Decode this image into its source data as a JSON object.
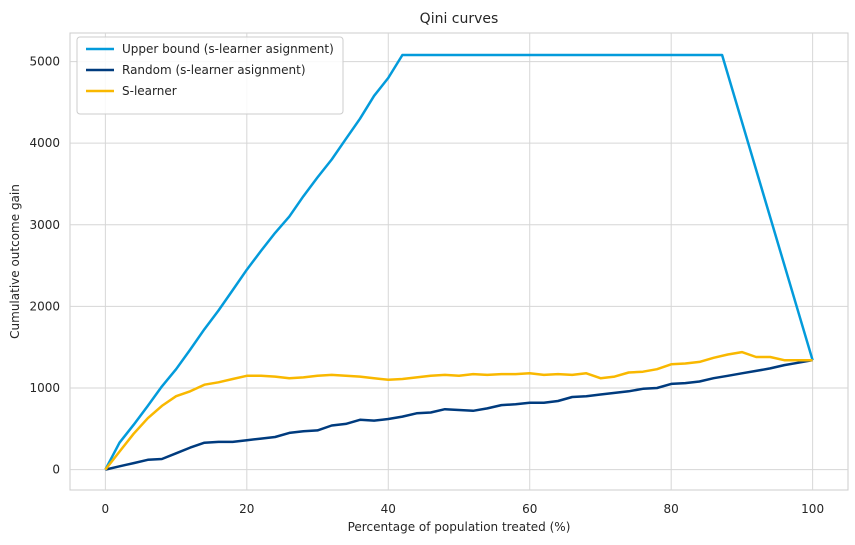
{
  "chart_data": {
    "type": "line",
    "title": "Qini curves",
    "xlabel": "Percentage of population treated (%)",
    "ylabel": "Cumulative outcome gain",
    "xlim": [
      -5,
      105
    ],
    "ylim": [
      -250,
      5350
    ],
    "xticks": [
      0,
      20,
      40,
      60,
      80,
      100
    ],
    "yticks": [
      0,
      1000,
      2000,
      3000,
      4000,
      5000
    ],
    "grid": true,
    "legend_position": "top-left",
    "series": [
      {
        "name": "Upper bound (s-learner asignment)",
        "color": "#039BDB",
        "x": [
          0,
          2,
          4,
          6,
          8,
          10,
          12,
          14,
          16,
          18,
          20,
          22,
          24,
          26,
          28,
          30,
          32,
          34,
          36,
          38,
          40,
          42,
          87.2,
          100
        ],
        "y": [
          0,
          330,
          550,
          780,
          1020,
          1230,
          1470,
          1720,
          1950,
          2200,
          2450,
          2680,
          2900,
          3100,
          3350,
          3580,
          3800,
          4050,
          4300,
          4580,
          4800,
          5080,
          5080,
          1340
        ]
      },
      {
        "name": "Random (s-learner asignment)",
        "color": "#003B7E",
        "x": [
          0,
          2,
          4,
          6,
          8,
          10,
          12,
          14,
          16,
          18,
          20,
          22,
          24,
          26,
          28,
          30,
          32,
          34,
          36,
          38,
          40,
          42,
          44,
          46,
          48,
          50,
          52,
          54,
          56,
          58,
          60,
          62,
          64,
          66,
          68,
          70,
          72,
          74,
          76,
          78,
          80,
          82,
          84,
          86,
          88,
          90,
          92,
          94,
          96,
          98,
          100
        ],
        "y": [
          0,
          40,
          80,
          120,
          130,
          200,
          270,
          330,
          340,
          340,
          360,
          380,
          400,
          450,
          470,
          480,
          540,
          560,
          610,
          600,
          620,
          650,
          690,
          700,
          740,
          730,
          720,
          750,
          790,
          800,
          820,
          820,
          840,
          890,
          900,
          920,
          940,
          960,
          990,
          1000,
          1050,
          1060,
          1080,
          1120,
          1150,
          1180,
          1210,
          1240,
          1280,
          1310,
          1340
        ]
      },
      {
        "name": "S-learner",
        "color": "#F9B800",
        "x": [
          0,
          2,
          4,
          6,
          8,
          10,
          12,
          14,
          16,
          18,
          20,
          22,
          24,
          26,
          28,
          30,
          32,
          34,
          36,
          38,
          40,
          42,
          44,
          46,
          48,
          50,
          52,
          54,
          56,
          58,
          60,
          62,
          64,
          66,
          68,
          70,
          72,
          74,
          76,
          78,
          80,
          82,
          84,
          86,
          88,
          90,
          92,
          94,
          96,
          98,
          100
        ],
        "y": [
          0,
          220,
          440,
          630,
          780,
          900,
          960,
          1040,
          1070,
          1110,
          1150,
          1150,
          1140,
          1120,
          1130,
          1150,
          1160,
          1150,
          1140,
          1120,
          1100,
          1110,
          1130,
          1150,
          1160,
          1150,
          1170,
          1160,
          1170,
          1170,
          1180,
          1160,
          1170,
          1160,
          1180,
          1120,
          1140,
          1190,
          1200,
          1230,
          1290,
          1300,
          1320,
          1370,
          1410,
          1440,
          1380,
          1380,
          1340,
          1340,
          1340
        ]
      }
    ]
  }
}
